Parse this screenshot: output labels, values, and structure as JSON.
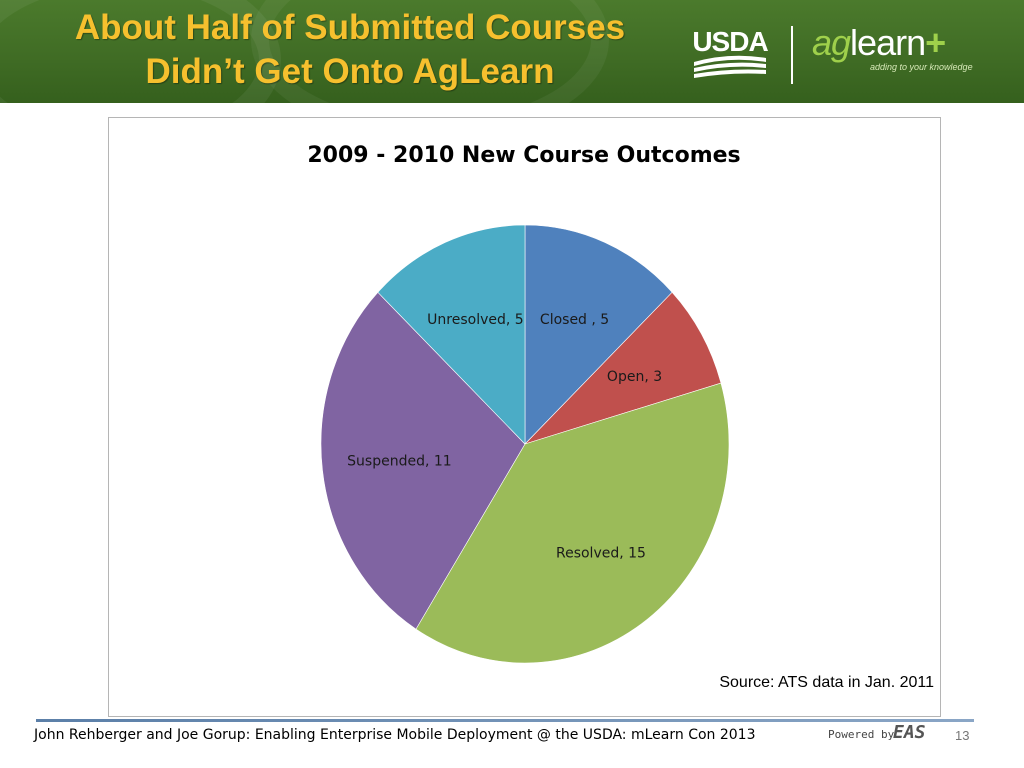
{
  "header": {
    "title_line1": "About Half of Submitted Courses",
    "title_line2": "Didn’t Get Onto AgLearn",
    "usda_logo_text": "USDA",
    "aglearn_logo": {
      "ag": "ag",
      "learn": "learn",
      "plus": "+",
      "tagline": "adding to your knowledge"
    }
  },
  "chart_data": {
    "type": "pie",
    "title": "2009 - 2010 New Course Outcomes",
    "slices": [
      {
        "label": "Closed , 5",
        "name": "Closed",
        "value": 5,
        "color": "#4f81bd"
      },
      {
        "label": "Open, 3",
        "name": "Open",
        "value": 3,
        "color": "#c0504d"
      },
      {
        "label": "Resolved, 15",
        "name": "Resolved",
        "value": 15,
        "color": "#9bbb59"
      },
      {
        "label": "Suspended, 11",
        "name": "Suspended",
        "value": 11,
        "color": "#8064a2"
      },
      {
        "label": "Unresolved, 5",
        "name": "Unresolved",
        "value": 5,
        "color": "#4bacc6"
      }
    ],
    "start_angle_deg": 0,
    "direction": "clockwise",
    "legend": "none"
  },
  "source_note": "Source: ATS data in Jan. 2011",
  "footer": {
    "text": "John Rehberger  and Joe Gorup: Enabling Enterprise Mobile Deployment  @ the USDA: mLearn Con 2013",
    "powered_by": "Powered by",
    "powered_logo": "EAS",
    "slide_number": "13"
  },
  "colors": {
    "header_green": "#3f6b24",
    "title_gold": "#f6c02e"
  }
}
